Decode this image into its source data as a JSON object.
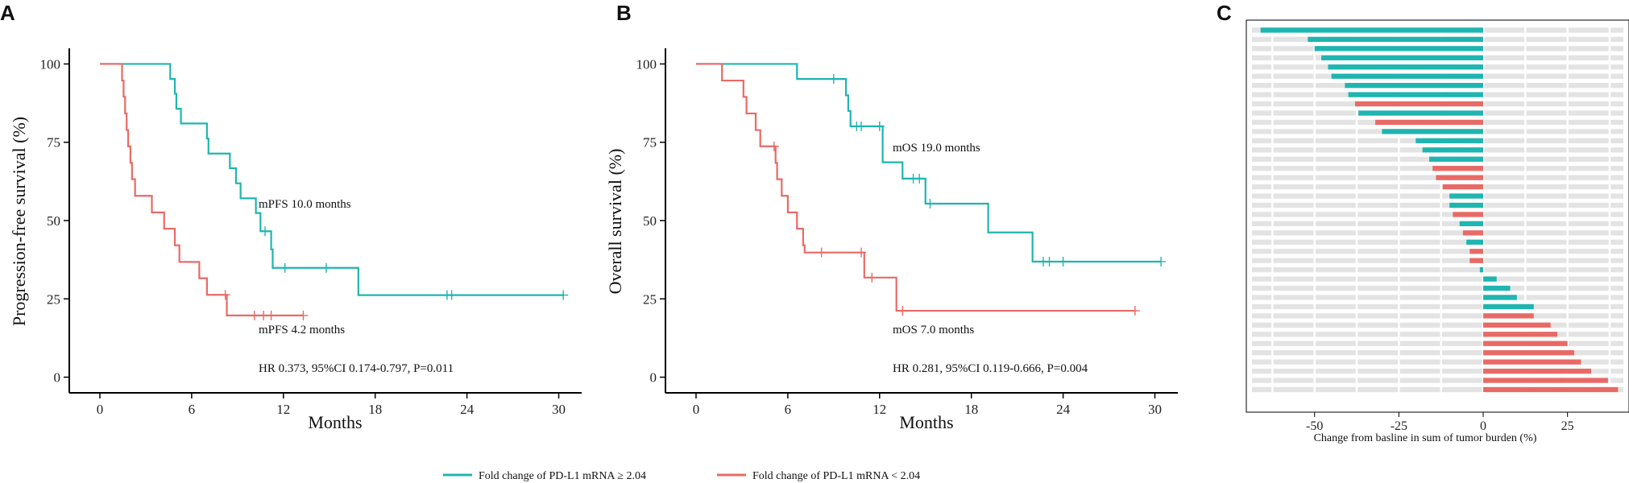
{
  "colors": {
    "teal": "#1fb5b0",
    "red": "#e86a66",
    "axis": "#000000",
    "grid": "#e3e3e3"
  },
  "panels": {
    "a": "A",
    "b": "B",
    "c": "C"
  },
  "legend": [
    {
      "label": "Fold change of PD-L1 mRNA ≥ 2.04",
      "color": "#1fb5b0"
    },
    {
      "label": "Fold change of PD-L1 mRNA < 2.04",
      "color": "#e86a66"
    }
  ],
  "chart_data": [
    {
      "type": "line",
      "panel": "A",
      "xlabel": "Months",
      "ylabel": "Progression-free survival (%)",
      "xlim": [
        -2,
        31.5
      ],
      "ylim": [
        -5,
        105
      ],
      "xticks": [
        0,
        6,
        12,
        18,
        24,
        30
      ],
      "yticks": [
        0,
        25,
        50,
        75,
        100
      ],
      "annotations": {
        "high": "mPFS 10.0 months",
        "low": "mPFS 4.2 months",
        "hr": "HR  0.373, 95%CI 0.174-0.797, P=0.011"
      },
      "series": [
        {
          "name": "Fold change of PD-L1 mRNA ≥ 2.04",
          "color": "#1fb5b0",
          "steps": [
            [
              0,
              100
            ],
            [
              4.3,
              100
            ],
            [
              4.6,
              95.2
            ],
            [
              4.9,
              90.5
            ],
            [
              5.0,
              85.7
            ],
            [
              5.3,
              81.0
            ],
            [
              7.0,
              76.2
            ],
            [
              7.1,
              71.4
            ],
            [
              8.5,
              66.7
            ],
            [
              8.9,
              61.9
            ],
            [
              9.2,
              57.1
            ],
            [
              10.2,
              52.4
            ],
            [
              10.5,
              46.6
            ],
            [
              11.2,
              40.8
            ],
            [
              11.3,
              34.9
            ],
            [
              16.9,
              26.2
            ],
            [
              30.3,
              26.2
            ]
          ],
          "censored": [
            [
              10.8,
              46.6
            ],
            [
              12.1,
              34.9
            ],
            [
              14.8,
              34.9
            ],
            [
              22.7,
              26.2
            ],
            [
              23.0,
              26.2
            ],
            [
              30.3,
              26.2
            ]
          ]
        },
        {
          "name": "Fold change of PD-L1 mRNA < 2.04",
          "color": "#e86a66",
          "steps": [
            [
              0,
              100
            ],
            [
              1.4,
              100
            ],
            [
              1.45,
              94.7
            ],
            [
              1.55,
              89.5
            ],
            [
              1.65,
              84.2
            ],
            [
              1.75,
              78.9
            ],
            [
              1.85,
              73.7
            ],
            [
              2.0,
              68.4
            ],
            [
              2.1,
              63.2
            ],
            [
              2.3,
              57.9
            ],
            [
              3.4,
              52.6
            ],
            [
              4.2,
              47.4
            ],
            [
              4.9,
              42.1
            ],
            [
              5.2,
              36.8
            ],
            [
              6.5,
              31.6
            ],
            [
              7.0,
              26.3
            ],
            [
              8.3,
              19.7
            ],
            [
              13.3,
              19.7
            ]
          ],
          "censored": [
            [
              8.2,
              26.3
            ],
            [
              10.1,
              19.7
            ],
            [
              10.7,
              19.7
            ],
            [
              11.2,
              19.7
            ],
            [
              13.3,
              19.7
            ]
          ]
        }
      ]
    },
    {
      "type": "line",
      "panel": "B",
      "xlabel": "Months",
      "ylabel": "Overall survival (%)",
      "xlim": [
        -2,
        31.5
      ],
      "ylim": [
        -5,
        105
      ],
      "xticks": [
        0,
        6,
        12,
        18,
        24,
        30
      ],
      "yticks": [
        0,
        25,
        50,
        75,
        100
      ],
      "annotations": {
        "high": "mOS 19.0 months",
        "low": "mOS 7.0 months",
        "hr": "HR 0.281, 95%CI 0.119-0.666,  P=0.004"
      },
      "series": [
        {
          "name": "Fold change of PD-L1 mRNA ≥ 2.04",
          "color": "#1fb5b0",
          "steps": [
            [
              0,
              100
            ],
            [
              6.5,
              100
            ],
            [
              6.6,
              95.2
            ],
            [
              9.6,
              95.2
            ],
            [
              9.8,
              90.0
            ],
            [
              9.95,
              85.0
            ],
            [
              10.1,
              80.1
            ],
            [
              12.2,
              68.6
            ],
            [
              13.5,
              63.4
            ],
            [
              15.0,
              55.4
            ],
            [
              19.1,
              46.2
            ],
            [
              22.0,
              36.9
            ],
            [
              30.4,
              36.9
            ]
          ],
          "censored": [
            [
              9.0,
              95.2
            ],
            [
              10.5,
              80.1
            ],
            [
              10.8,
              80.1
            ],
            [
              12.0,
              80.1
            ],
            [
              14.2,
              63.4
            ],
            [
              14.6,
              63.4
            ],
            [
              15.3,
              55.4
            ],
            [
              22.7,
              36.9
            ],
            [
              23.1,
              36.9
            ],
            [
              24.0,
              36.9
            ],
            [
              30.4,
              36.9
            ]
          ]
        },
        {
          "name": "Fold change of PD-L1 mRNA < 2.04",
          "color": "#e86a66",
          "steps": [
            [
              0,
              100
            ],
            [
              1.6,
              100
            ],
            [
              1.7,
              94.7
            ],
            [
              3.1,
              89.5
            ],
            [
              3.3,
              84.2
            ],
            [
              3.9,
              78.9
            ],
            [
              4.2,
              73.7
            ],
            [
              5.2,
              68.4
            ],
            [
              5.3,
              63.2
            ],
            [
              5.6,
              57.9
            ],
            [
              6.0,
              52.6
            ],
            [
              6.6,
              47.4
            ],
            [
              7.0,
              42.1
            ],
            [
              7.1,
              39.8
            ],
            [
              10.9,
              39.8
            ],
            [
              11.0,
              31.8
            ],
            [
              13.0,
              31.8
            ],
            [
              13.1,
              21.2
            ],
            [
              28.7,
              21.2
            ]
          ],
          "censored": [
            [
              5.1,
              73.7
            ],
            [
              8.2,
              39.8
            ],
            [
              10.8,
              39.8
            ],
            [
              11.5,
              31.8
            ],
            [
              13.5,
              21.2
            ],
            [
              28.7,
              21.2
            ]
          ]
        }
      ]
    },
    {
      "type": "bar",
      "panel": "C",
      "orientation": "horizontal",
      "xlabel": "Change from basline in sum of tumor burden (%)",
      "xlim": [
        -70,
        43
      ],
      "xticks": [
        -50,
        -25,
        0,
        25
      ],
      "values": [
        -66,
        -52,
        -50,
        -48,
        -46,
        -45,
        -41,
        -40,
        -38,
        -37,
        -32,
        -30,
        -20,
        -18,
        -16,
        -15,
        -14,
        -12,
        -10,
        -10,
        -9,
        -7,
        -6,
        -5,
        -4,
        -4,
        -1,
        4,
        8,
        10,
        15,
        15,
        20,
        22,
        25,
        27,
        29,
        32,
        37,
        40
      ],
      "groups": [
        "teal",
        "teal",
        "teal",
        "teal",
        "teal",
        "teal",
        "teal",
        "teal",
        "red",
        "teal",
        "red",
        "teal",
        "teal",
        "teal",
        "teal",
        "red",
        "red",
        "red",
        "teal",
        "teal",
        "red",
        "teal",
        "red",
        "teal",
        "red",
        "red",
        "teal",
        "teal",
        "teal",
        "teal",
        "teal",
        "red",
        "red",
        "red",
        "red",
        "red",
        "red",
        "red",
        "red",
        "red"
      ]
    }
  ]
}
